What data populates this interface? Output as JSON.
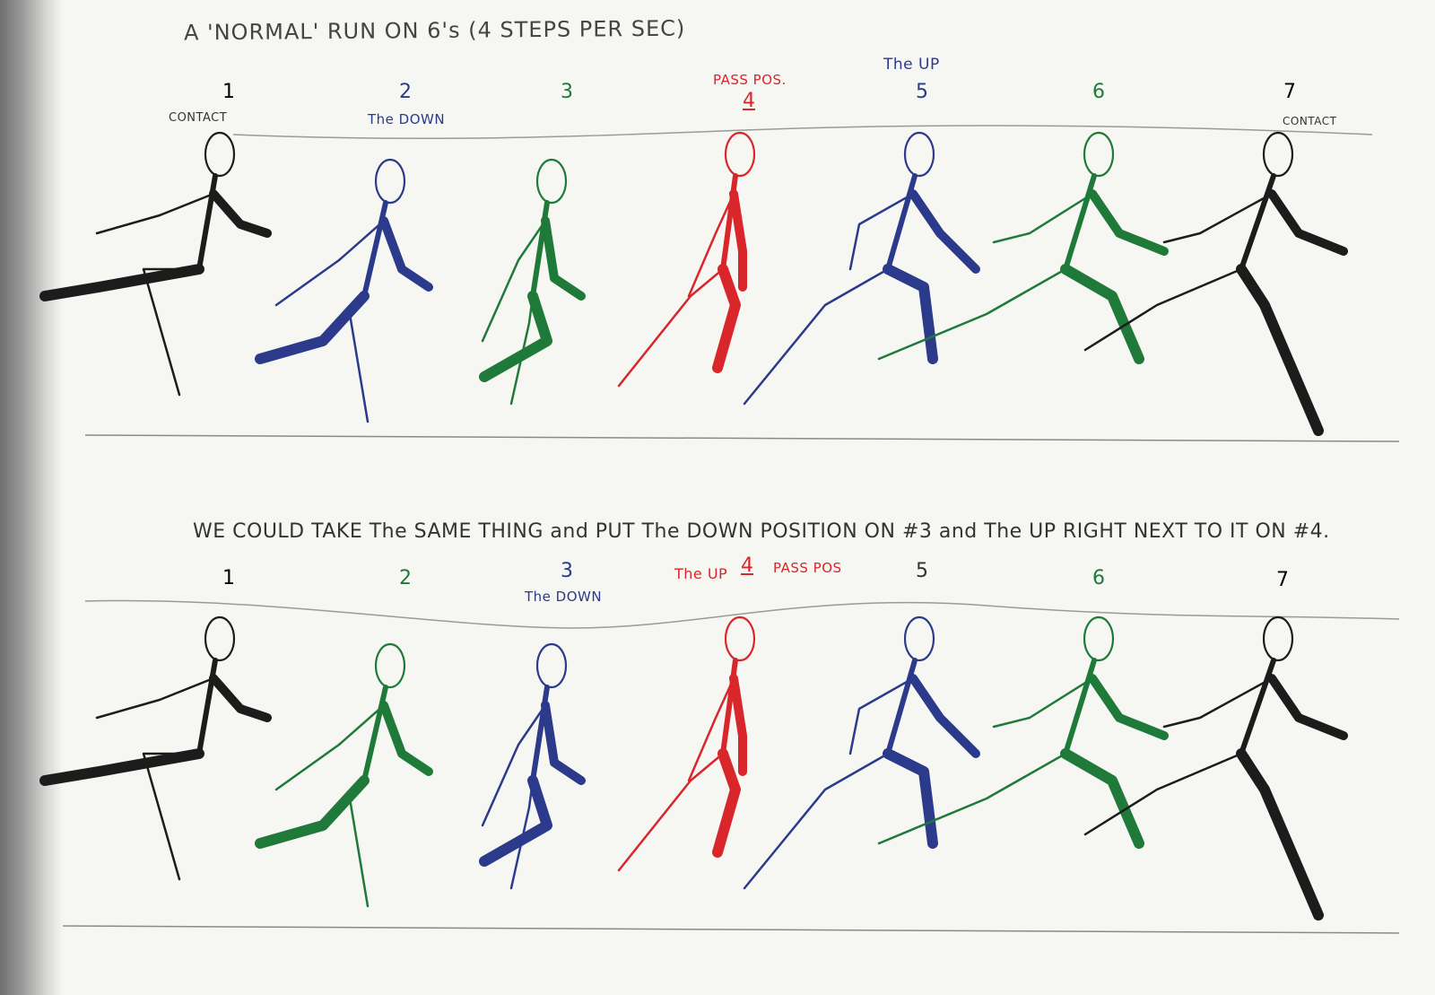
{
  "title": "A 'NORMAL' RUN ON 6's (4 STEPS PER SEC)",
  "subtitle": "WE COULD TAKE The SAME THING and PUT The DOWN POSITION ON #3 and The UP RIGHT NEXT TO IT ON #4.",
  "colors": {
    "black": "#1c1c1c",
    "blue": "#2b3a8a",
    "green": "#1f7a3a",
    "red": "#d8262a"
  },
  "rows": [
    {
      "frames": [
        {
          "number": "1",
          "label": "CONTACT",
          "color": "black"
        },
        {
          "number": "2",
          "label": "The DOWN",
          "color": "blue"
        },
        {
          "number": "3",
          "label": "",
          "color": "green"
        },
        {
          "number": "4",
          "label": "PASS POS.",
          "color": "red"
        },
        {
          "number": "5",
          "label": "The UP",
          "color": "blue"
        },
        {
          "number": "6",
          "label": "",
          "color": "green"
        },
        {
          "number": "7",
          "label": "CONTACT",
          "color": "black"
        }
      ]
    },
    {
      "frames": [
        {
          "number": "1",
          "label": "",
          "color": "black"
        },
        {
          "number": "2",
          "label": "",
          "color": "green"
        },
        {
          "number": "3",
          "label": "The DOWN",
          "color": "blue"
        },
        {
          "number": "4",
          "label": "PASS POS",
          "label_left": "The UP",
          "color": "red"
        },
        {
          "number": "5",
          "label": "",
          "color": "blue"
        },
        {
          "number": "6",
          "label": "",
          "color": "green"
        },
        {
          "number": "7",
          "label": "",
          "color": "black"
        }
      ]
    }
  ]
}
